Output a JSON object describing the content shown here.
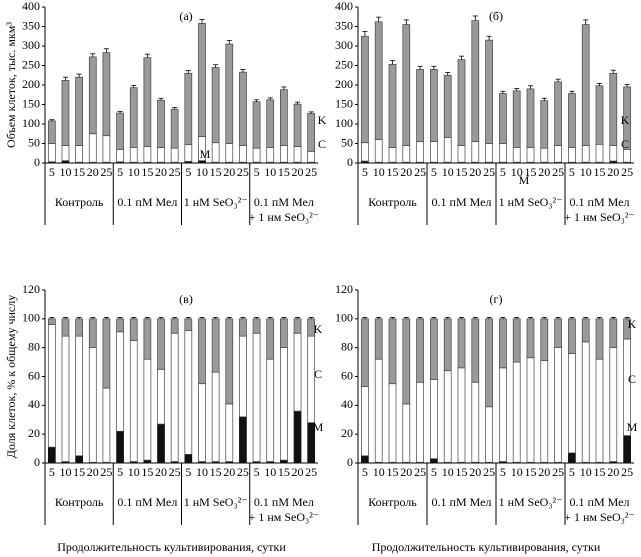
{
  "chart_data": [
    {
      "type": "stacked_bar",
      "panel_label": "(а)",
      "ylabel": "Объем клеток, тыс. мкм³",
      "categories": [
        "5",
        "10",
        "15",
        "20",
        "25",
        "5",
        "10",
        "15",
        "20",
        "25",
        "5",
        "10",
        "15",
        "20",
        "25",
        "5",
        "10",
        "15",
        "20",
        "25"
      ],
      "groups": [
        [
          "Контроль"
        ],
        [
          "0.1 пМ Мел"
        ],
        [
          "1 нМ SeO₃²⁻"
        ],
        [
          "0.1 пМ Мел",
          "+ 1 нм SeO₃²⁻"
        ]
      ],
      "ylim": [
        0,
        400
      ],
      "yticks": [
        0,
        50,
        100,
        150,
        200,
        250,
        300,
        350,
        400
      ],
      "series": [
        {
          "name": "M",
          "color": "#111111",
          "values": [
            3,
            6,
            2,
            2,
            2,
            3,
            2,
            2,
            2,
            2,
            4,
            6,
            2,
            2,
            2,
            2,
            2,
            2,
            2,
            2
          ]
        },
        {
          "name": "C",
          "color": "#ffffff",
          "values": [
            47,
            39,
            43,
            73,
            68,
            32,
            38,
            40,
            38,
            36,
            43,
            62,
            50,
            48,
            43,
            36,
            38,
            43,
            40,
            28
          ]
        },
        {
          "name": "K",
          "color": "#9a9a9a",
          "values": [
            58,
            167,
            175,
            197,
            213,
            93,
            153,
            228,
            121,
            100,
            183,
            290,
            193,
            255,
            188,
            119,
            122,
            143,
            109,
            97
          ],
          "errors": [
            3,
            8,
            8,
            8,
            10,
            4,
            6,
            9,
            5,
            4,
            7,
            10,
            7,
            9,
            7,
            5,
            5,
            7,
            5,
            4
          ]
        }
      ]
    },
    {
      "type": "stacked_bar",
      "panel_label": "(б)",
      "categories": [
        "5",
        "10",
        "15",
        "20",
        "25",
        "5",
        "10",
        "15",
        "20",
        "25",
        "5",
        "10",
        "15",
        "20",
        "25",
        "5",
        "10",
        "15",
        "20",
        "25"
      ],
      "groups": [
        [
          "Контроль"
        ],
        [
          "0.1 пМ Мел"
        ],
        [
          "1 нМ SeO₃²⁻"
        ],
        [
          "0.1 пМ Мел",
          "+ 1 нм SeO₃²⁻"
        ]
      ],
      "ylim": [
        0,
        400
      ],
      "yticks": [
        0,
        50,
        100,
        150,
        200,
        250,
        300,
        350,
        400
      ],
      "series": [
        {
          "name": "M",
          "color": "#111111",
          "values": [
            5,
            2,
            2,
            2,
            2,
            2,
            2,
            2,
            2,
            2,
            2,
            2,
            2,
            2,
            2,
            2,
            2,
            2,
            5,
            2
          ]
        },
        {
          "name": "C",
          "color": "#ffffff",
          "values": [
            47,
            58,
            38,
            43,
            53,
            53,
            63,
            43,
            53,
            48,
            48,
            38,
            38,
            36,
            43,
            38,
            43,
            46,
            40,
            33
          ]
        },
        {
          "name": "K",
          "color": "#9a9a9a",
          "values": [
            273,
            302,
            213,
            310,
            185,
            185,
            160,
            220,
            310,
            265,
            128,
            145,
            150,
            122,
            163,
            138,
            310,
            150,
            185,
            160
          ],
          "errors": [
            12,
            12,
            10,
            12,
            8,
            8,
            7,
            9,
            12,
            10,
            6,
            6,
            8,
            6,
            7,
            6,
            12,
            6,
            8,
            6
          ]
        }
      ]
    },
    {
      "type": "stacked_bar",
      "panel_label": "(в)",
      "ylabel": "Доля клеток, % к общему числу",
      "xlabel": "Продолжительность культивирования, сутки",
      "categories": [
        "5",
        "10",
        "15",
        "20",
        "25",
        "5",
        "10",
        "15",
        "20",
        "25",
        "5",
        "10",
        "15",
        "20",
        "25",
        "5",
        "10",
        "15",
        "20",
        "25"
      ],
      "groups": [
        [
          "Контроль"
        ],
        [
          "0.1 пМ Мел"
        ],
        [
          "1 нМ SeO₃²⁻"
        ],
        [
          "0.1 пМ Мел",
          "+ 1 нм SeO₃²⁻"
        ]
      ],
      "ylim": [
        0,
        120
      ],
      "yticks": [
        0,
        20,
        40,
        60,
        80,
        100,
        120
      ],
      "series": [
        {
          "name": "M",
          "color": "#111111",
          "values": [
            11,
            1,
            5,
            0.5,
            0.5,
            22,
            1,
            2,
            27,
            1,
            6,
            1,
            1,
            1,
            32,
            1,
            1,
            2,
            36,
            28
          ]
        },
        {
          "name": "C",
          "color": "#ffffff",
          "values": [
            85,
            87,
            83,
            79.5,
            51.5,
            69,
            84,
            70,
            38,
            89,
            86,
            54,
            62,
            40,
            56,
            89,
            71,
            78,
            54,
            60
          ]
        },
        {
          "name": "K",
          "color": "#9a9a9a",
          "values": [
            4,
            12,
            12,
            20,
            48,
            9,
            15,
            28,
            35,
            10,
            8,
            45,
            37,
            59,
            12,
            10,
            28,
            20,
            10,
            12
          ],
          "errors": [
            1,
            1,
            1,
            1,
            1,
            1,
            1,
            1,
            1,
            1,
            1,
            1,
            1,
            1,
            1,
            1,
            1,
            1,
            1,
            1
          ]
        }
      ]
    },
    {
      "type": "stacked_bar",
      "panel_label": "(г)",
      "xlabel": "Продолжительность культивирования, сутки",
      "categories": [
        "5",
        "10",
        "15",
        "20",
        "25",
        "5",
        "10",
        "15",
        "20",
        "25",
        "5",
        "10",
        "15",
        "20",
        "25",
        "5",
        "10",
        "15",
        "20",
        "25"
      ],
      "groups": [
        [
          "Контроль"
        ],
        [
          "0.1 пМ Мел"
        ],
        [
          "1 нМ SeO₃²⁻"
        ],
        [
          "0.1 пМ Мел",
          "+ 1 нм SeO₃²⁻"
        ]
      ],
      "ylim": [
        0,
        120
      ],
      "yticks": [
        0,
        20,
        40,
        60,
        80,
        100,
        120
      ],
      "series": [
        {
          "name": "M",
          "color": "#111111",
          "values": [
            5,
            0.5,
            0.5,
            0.5,
            0.5,
            3,
            0.5,
            0.5,
            0.5,
            0.5,
            1,
            0.5,
            0.5,
            0.5,
            0.5,
            7,
            0.5,
            0.5,
            1,
            19
          ]
        },
        {
          "name": "C",
          "color": "#ffffff",
          "values": [
            48,
            71.5,
            54.5,
            40.5,
            55.5,
            55,
            63.5,
            65.5,
            55.5,
            38.5,
            65,
            69.5,
            72.5,
            70.5,
            79.5,
            69,
            83.5,
            71.5,
            79,
            67
          ]
        },
        {
          "name": "K",
          "color": "#9a9a9a",
          "values": [
            47,
            28,
            45,
            59,
            44,
            42,
            36,
            34,
            44,
            61,
            34,
            30,
            27,
            29,
            20,
            24,
            16,
            28,
            20,
            14
          ],
          "errors": [
            1,
            1,
            1,
            1,
            1,
            1,
            1,
            1,
            1,
            1,
            1,
            1,
            1,
            1,
            1,
            1,
            1,
            1,
            1,
            1
          ]
        }
      ]
    }
  ]
}
